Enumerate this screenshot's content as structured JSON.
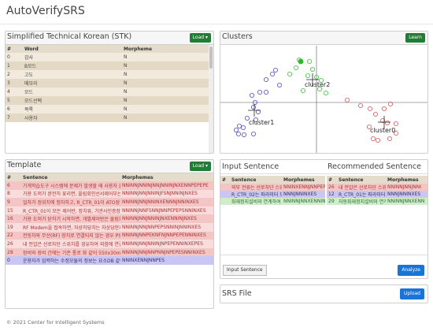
{
  "app": {
    "title": "AutoVerifySRS"
  },
  "stk": {
    "title": "Simplified Technical Korean (STK)",
    "load_label": "Load",
    "columns": [
      "#",
      "Word",
      "Morpheme"
    ],
    "rows": [
      [
        "0",
        "감사",
        "N"
      ],
      [
        "1",
        "B모드",
        "N"
      ],
      [
        "2",
        "고도",
        "N"
      ],
      [
        "3",
        "메모리",
        "N"
      ],
      [
        "4",
        "모드",
        "N"
      ],
      [
        "5",
        "모드선택",
        "N"
      ],
      [
        "6",
        "목록",
        "N"
      ],
      [
        "7",
        "사용자",
        "N"
      ]
    ]
  },
  "clusters": {
    "title": "Clusters",
    "learn_label": "Learn",
    "labels": [
      "cluster2",
      "cluster1",
      "cluster0"
    ]
  },
  "template": {
    "title": "Template",
    "load_label": "Load",
    "columns": [
      "#",
      "Sentence",
      "Morphemes"
    ],
    "rows": [
      {
        "c": "r-red",
        "cells": [
          "6",
          "기계학습도구 시스템에 문제가 발생할 때 사용자 들",
          "NNINNJNNINJNNJNNINJNXENNPEPEPE"
        ]
      },
      {
        "c": "r-pink",
        "cells": [
          "8",
          "가용 도머가 완전히 꽃리면, 올림회인선서제어부는",
          "NNINNJNNJNNINJFSNJNNINJNXES"
        ]
      },
      {
        "c": "r-red",
        "cells": [
          "9",
          "얼차가 정위치에 정차하고, R_CTR_01이 ATO장치에",
          "NNINNJNNJNNINXENNNJNNINXES"
        ]
      },
      {
        "c": "r-pink",
        "cells": [
          "15",
          "R_CTR_01이 모든 제어반, 장치류, 기관사인증장치",
          "NNINNJNNFSNNJNNPEPEPSNNINXES"
        ]
      },
      {
        "c": "r-red",
        "cells": [
          "16",
          "가용 도머가 닫히기 시작하면, 개별제어반은 물림회로",
          "NNINNJNNJNNINJNXENNINJNXES"
        ]
      },
      {
        "c": "r-pink",
        "cells": [
          "19",
          "RF Modem을 접속하면, 자상하당치는 차상당한지사 장",
          "NNINNJNNJNNPEPSNNINJNNINXES"
        ]
      },
      {
        "c": "r-red",
        "cells": [
          "22",
          "전동차와 무선(RF) 장치로 연결되지 않는 경우 PSD",
          "NNINNJNNPEKNFNJNNPEPENNINXES"
        ]
      },
      {
        "c": "r-pink",
        "cells": [
          "26",
          "내 전압은 선로차단 스위치를 경유하여 외함에 연결되",
          "NNINNJNNJNNINJNPEPENNINXEPES"
        ]
      },
      {
        "c": "r-red",
        "cells": [
          "28",
          "장비와 장비 간에는 기존 통로 화 같이 550x30mm",
          "NNINNJNNJNNPNNJNPEPESNNINXES"
        ]
      },
      {
        "c": "r-blue",
        "cells": [
          "0",
          "운용자가 입력하는 수정모듈의 정보는 요소DB 같이",
          "NNINXENNJNNPES"
        ]
      }
    ]
  },
  "input": {
    "title": "Input Sentence",
    "columns": [
      "#",
      "Sentence",
      "Morphemes"
    ],
    "rows": [
      {
        "c": "r-red",
        "cells": [
          "",
          "외부 전류는 선로차단 스위치를 경유",
          "NNINXENNJNNPEPEPS"
        ]
      },
      {
        "c": "r-blue",
        "cells": [
          "",
          "R_CTR_02는 파라미터 또는 인수 사용",
          "NNNJNNINXES"
        ]
      },
      {
        "c": "r-green",
        "cells": [
          "",
          "화재정지설비와 연계하여 화재발생",
          "NNINNJNNXENNINXES"
        ]
      }
    ],
    "button_label": "Input Sentence",
    "analyze_label": "Analyze"
  },
  "recommended": {
    "title": "Recommended Sentence",
    "columns": [
      "#",
      "Sentence",
      "Morphemes"
    ],
    "rows": [
      {
        "c": "r-red",
        "cells": [
          "26",
          "내 전압은 선로차단 스위",
          "NNINNJNNJNNI"
        ]
      },
      {
        "c": "r-blue",
        "cells": [
          "12",
          "R_CTR_01는 파라미터 또",
          "NNNJNNINXES"
        ]
      },
      {
        "c": "r-green",
        "cells": [
          "29",
          "자동화재정지설비와 연계",
          "NNINNJNNXENN"
        ]
      }
    ]
  },
  "srs": {
    "title": "SRS File",
    "upload_label": "Upload"
  },
  "footer": {
    "text": "© 2021 Center for Intelligent Systems"
  },
  "colors": {
    "green": "#1e7e34",
    "blue": "#1a73d9",
    "red": "#e15759",
    "navy": "#4e4ec9"
  }
}
